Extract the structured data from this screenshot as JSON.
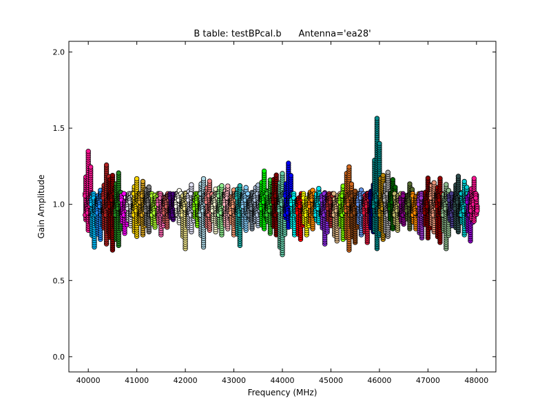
{
  "chart_data": {
    "type": "scatter",
    "title": "B table: testBPcal.b      Antenna='ea28'",
    "xlabel": "Frequency (MHz)",
    "ylabel": "Gain Amplitude",
    "xlim": [
      39600,
      48400
    ],
    "ylim": [
      -0.1,
      2.07
    ],
    "xticks": [
      40000,
      41000,
      42000,
      43000,
      44000,
      45000,
      46000,
      47000,
      48000
    ],
    "yticks": [
      0.0,
      0.5,
      1.0,
      1.5,
      2.0
    ],
    "xtick_labels": [
      "40000",
      "41000",
      "42000",
      "43000",
      "44000",
      "45000",
      "46000",
      "47000",
      "48000"
    ],
    "ytick_labels": [
      "0.0",
      "0.5",
      "1.0",
      "1.5",
      "2.0"
    ],
    "grid": false,
    "marker": "circle",
    "marker_edge_color": "#000000",
    "series": [
      {
        "freq": 40000,
        "color": "#ff1493",
        "range": [
          0.83,
          1.36
        ]
      },
      {
        "freq": 40125,
        "color": "#00bfff",
        "range": [
          0.72,
          1.06
        ]
      },
      {
        "freq": 40250,
        "color": "#1e90ff",
        "range": [
          0.77,
          1.1
        ]
      },
      {
        "freq": 40375,
        "color": "#b22222",
        "range": [
          0.74,
          1.27
        ]
      },
      {
        "freq": 40500,
        "color": "#8b0000",
        "range": [
          0.7,
          1.2
        ]
      },
      {
        "freq": 40625,
        "color": "#228b22",
        "range": [
          0.73,
          1.21
        ]
      },
      {
        "freq": 40750,
        "color": "#ff00ff",
        "range": [
          0.81,
          1.03
        ]
      },
      {
        "freq": 40875,
        "color": "#dcdcdc",
        "range": [
          0.86,
          1.08
        ]
      },
      {
        "freq": 41000,
        "color": "#ffd700",
        "range": [
          0.79,
          1.18
        ]
      },
      {
        "freq": 41125,
        "color": "#daa520",
        "range": [
          0.8,
          1.15
        ]
      },
      {
        "freq": 41250,
        "color": "#808080",
        "range": [
          0.82,
          1.12
        ]
      },
      {
        "freq": 41375,
        "color": "#adff2f",
        "range": [
          0.85,
          1.06
        ]
      },
      {
        "freq": 41500,
        "color": "#ff69b4",
        "range": [
          0.8,
          1.07
        ]
      },
      {
        "freq": 41625,
        "color": "#cd5c5c",
        "range": [
          0.85,
          1.07
        ]
      },
      {
        "freq": 41750,
        "color": "#4b0082",
        "range": [
          0.9,
          1.07
        ]
      },
      {
        "freq": 41875,
        "color": "#fffff0",
        "range": [
          0.88,
          1.1
        ]
      },
      {
        "freq": 42000,
        "color": "#f0e68c",
        "range": [
          0.71,
          1.08
        ]
      },
      {
        "freq": 42125,
        "color": "#e6e6fa",
        "range": [
          0.82,
          1.13
        ]
      },
      {
        "freq": 42250,
        "color": "#7cfc00",
        "range": [
          0.86,
          1.08
        ]
      },
      {
        "freq": 42375,
        "color": "#add8e6",
        "range": [
          0.72,
          1.17
        ]
      },
      {
        "freq": 42500,
        "color": "#f08080",
        "range": [
          0.83,
          1.16
        ]
      },
      {
        "freq": 42625,
        "color": "#fafad2",
        "range": [
          0.82,
          1.1
        ]
      },
      {
        "freq": 42750,
        "color": "#90ee90",
        "range": [
          0.8,
          1.13
        ]
      },
      {
        "freq": 42875,
        "color": "#ffb6c1",
        "range": [
          0.84,
          1.13
        ]
      },
      {
        "freq": 43000,
        "color": "#ffa07a",
        "range": [
          0.8,
          1.1
        ]
      },
      {
        "freq": 43125,
        "color": "#20b2aa",
        "range": [
          0.73,
          1.13
        ]
      },
      {
        "freq": 43250,
        "color": "#87cefa",
        "range": [
          0.83,
          1.12
        ]
      },
      {
        "freq": 43375,
        "color": "#778899",
        "range": [
          0.84,
          1.08
        ]
      },
      {
        "freq": 43500,
        "color": "#b0c4de",
        "range": [
          0.86,
          1.13
        ]
      },
      {
        "freq": 43625,
        "color": "#00ff00",
        "range": [
          0.84,
          1.22
        ]
      },
      {
        "freq": 43750,
        "color": "#32cd32",
        "range": [
          0.81,
          1.17
        ]
      },
      {
        "freq": 43875,
        "color": "#800000",
        "range": [
          0.8,
          1.2
        ]
      },
      {
        "freq": 44000,
        "color": "#66cdaa",
        "range": [
          0.67,
          1.21
        ]
      },
      {
        "freq": 44125,
        "color": "#0000ff",
        "range": [
          0.85,
          1.27
        ]
      },
      {
        "freq": 44250,
        "color": "#00ffff",
        "range": [
          0.8,
          1.05
        ]
      },
      {
        "freq": 44375,
        "color": "#ff0000",
        "range": [
          0.77,
          1.05
        ]
      },
      {
        "freq": 44500,
        "color": "#ffff00",
        "range": [
          0.8,
          1.05
        ]
      },
      {
        "freq": 44625,
        "color": "#ff8c00",
        "range": [
          0.84,
          1.1
        ]
      },
      {
        "freq": 44750,
        "color": "#00e5ee",
        "range": [
          0.88,
          1.11
        ]
      },
      {
        "freq": 44875,
        "color": "#8a2be2",
        "range": [
          0.74,
          1.08
        ]
      },
      {
        "freq": 45000,
        "color": "#a52a2a",
        "range": [
          0.86,
          1.05
        ]
      },
      {
        "freq": 45125,
        "color": "#deb887",
        "range": [
          0.76,
          1.05
        ]
      },
      {
        "freq": 45250,
        "color": "#7fff00",
        "range": [
          0.77,
          1.12
        ]
      },
      {
        "freq": 45375,
        "color": "#d2691e",
        "range": [
          0.7,
          1.25
        ]
      },
      {
        "freq": 45500,
        "color": "#8b4513",
        "range": [
          0.75,
          1.09
        ]
      },
      {
        "freq": 45625,
        "color": "#6495ed",
        "range": [
          0.8,
          1.1
        ]
      },
      {
        "freq": 45750,
        "color": "#dc143c",
        "range": [
          0.75,
          1.08
        ]
      },
      {
        "freq": 45875,
        "color": "#00008b",
        "range": [
          0.82,
          1.13
        ]
      },
      {
        "freq": 45950,
        "color": "#008b8b",
        "range": [
          0.71,
          1.57
        ]
      },
      {
        "freq": 46075,
        "color": "#b8860b",
        "range": [
          0.77,
          1.2
        ]
      },
      {
        "freq": 46175,
        "color": "#a9a9a9",
        "range": [
          0.79,
          1.21
        ]
      },
      {
        "freq": 46275,
        "color": "#006400",
        "range": [
          0.84,
          1.17
        ]
      },
      {
        "freq": 46375,
        "color": "#bdb76b",
        "range": [
          0.83,
          1.06
        ]
      },
      {
        "freq": 46500,
        "color": "#8b008b",
        "range": [
          0.87,
          1.06
        ]
      },
      {
        "freq": 46625,
        "color": "#556b2f",
        "range": [
          0.84,
          1.14
        ]
      },
      {
        "freq": 46750,
        "color": "#ff8c00",
        "range": [
          0.84,
          1.06
        ]
      },
      {
        "freq": 46875,
        "color": "#9932cc",
        "range": [
          0.78,
          1.08
        ]
      },
      {
        "freq": 47000,
        "color": "#8b0000",
        "range": [
          0.78,
          1.18
        ]
      },
      {
        "freq": 47125,
        "color": "#e9967a",
        "range": [
          0.82,
          1.15
        ]
      },
      {
        "freq": 47250,
        "color": "#990000",
        "range": [
          0.75,
          1.17
        ]
      },
      {
        "freq": 47375,
        "color": "#8fbc8f",
        "range": [
          0.71,
          1.14
        ]
      },
      {
        "freq": 47500,
        "color": "#483d8b",
        "range": [
          0.86,
          1.06
        ]
      },
      {
        "freq": 47625,
        "color": "#2f4f4f",
        "range": [
          0.82,
          1.19
        ]
      },
      {
        "freq": 47750,
        "color": "#00ced1",
        "range": [
          0.8,
          1.16
        ]
      },
      {
        "freq": 47875,
        "color": "#9400d3",
        "range": [
          0.76,
          1.06
        ]
      },
      {
        "freq": 47950,
        "color": "#ff1493",
        "range": [
          0.89,
          1.17
        ]
      }
    ]
  }
}
